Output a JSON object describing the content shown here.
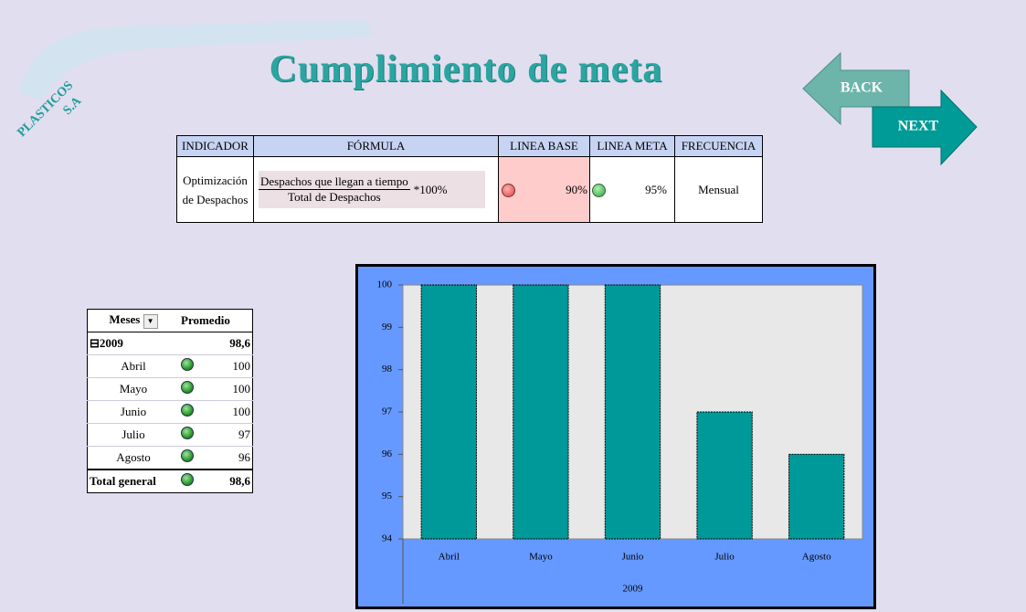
{
  "logo": {
    "line1": "PLASTICOS",
    "line2": "S.A"
  },
  "title": "Cumplimiento de meta",
  "nav": {
    "back": "BACK",
    "next": "NEXT"
  },
  "indicator_table": {
    "headers": [
      "INDICADOR",
      "FÓRMULA",
      "LINEA BASE",
      "LINEA META",
      "FRECUENCIA"
    ],
    "row": {
      "indicator": "Optimización de Despachos",
      "formula_numerator": "Despachos que llegan a tiempo",
      "formula_denominator": "Total de Despachos",
      "formula_factor": "*100%",
      "base": "90%",
      "meta": "95%",
      "frequency": "Mensual"
    }
  },
  "pivot": {
    "headers": [
      "Meses",
      "Promedio"
    ],
    "year": "2009",
    "year_value": "98,6",
    "rows": [
      [
        "Abril",
        "100"
      ],
      [
        "Mayo",
        "100"
      ],
      [
        "Junio",
        "100"
      ],
      [
        "Julio",
        "97"
      ],
      [
        "Agosto",
        "96"
      ]
    ],
    "total_label": "Total general",
    "total_value": "98,6"
  },
  "chart_data": {
    "type": "bar",
    "categories": [
      "Abril",
      "Mayo",
      "Junio",
      "Julio",
      "Agosto"
    ],
    "group_label": "2009",
    "values": [
      100,
      100,
      100,
      97,
      96
    ],
    "color": "#009999",
    "ylim": [
      94,
      100
    ],
    "yticks": [
      94,
      95,
      96,
      97,
      98,
      99,
      100
    ],
    "grid": false
  }
}
